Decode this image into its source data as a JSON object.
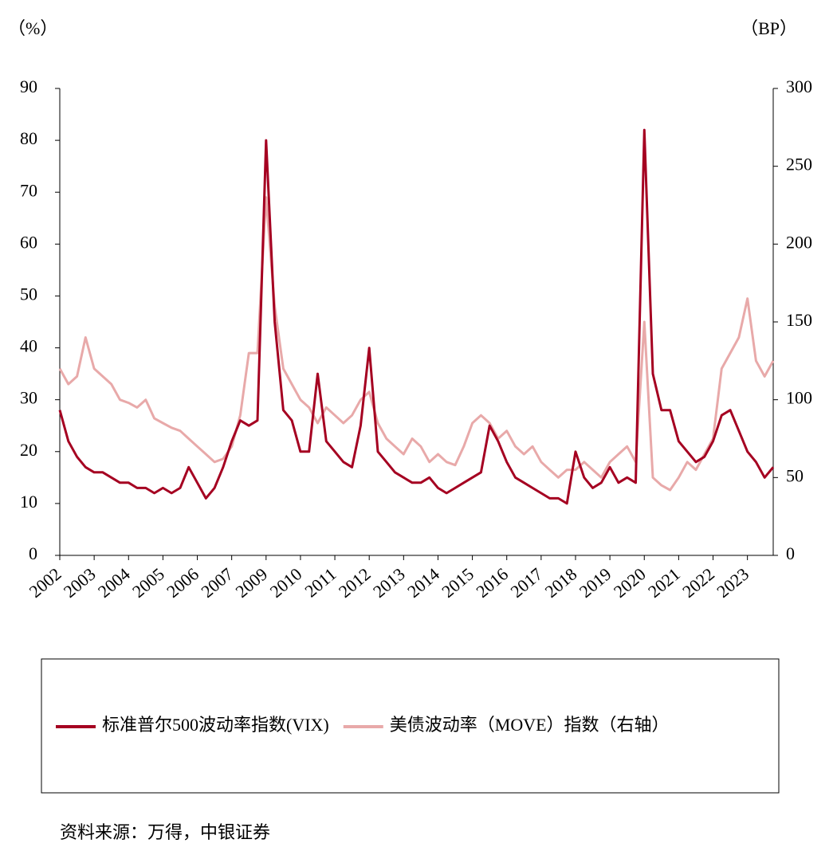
{
  "chart_data": {
    "type": "line",
    "y_unit": "（%）",
    "y2_unit": "（BP）",
    "categories": [
      "2002",
      null,
      null,
      null,
      "2003",
      null,
      null,
      null,
      "2004",
      null,
      null,
      null,
      "2005",
      null,
      null,
      null,
      "2006",
      null,
      null,
      null,
      "2007",
      null,
      null,
      null,
      "2009",
      null,
      null,
      null,
      "2010",
      null,
      null,
      null,
      "2011",
      null,
      null,
      null,
      "2012",
      null,
      null,
      null,
      "2013",
      null,
      null,
      null,
      "2014",
      null,
      null,
      null,
      "2015",
      null,
      null,
      null,
      "2016",
      null,
      null,
      null,
      "2017",
      null,
      null,
      null,
      "2018",
      null,
      null,
      null,
      "2019",
      null,
      null,
      null,
      "2020",
      null,
      null,
      null,
      "2021",
      null,
      null,
      null,
      "2022",
      null,
      null,
      null,
      "2023",
      null,
      null,
      null
    ],
    "series": [
      {
        "name": "标准普尔500波动率指数(VIX)",
        "color": "#a50021",
        "axis": "y",
        "values": [
          28,
          22,
          19,
          17,
          16,
          16,
          15,
          14,
          14,
          13,
          13,
          12,
          13,
          12,
          13,
          17,
          14,
          11,
          13,
          17,
          22,
          26,
          25,
          26,
          80,
          45,
          28,
          26,
          20,
          20,
          35,
          22,
          20,
          18,
          17,
          25,
          40,
          20,
          18,
          16,
          15,
          14,
          14,
          15,
          13,
          12,
          13,
          14,
          15,
          16,
          25,
          22,
          18,
          15,
          14,
          13,
          12,
          11,
          11,
          10,
          20,
          15,
          13,
          14,
          17,
          14,
          15,
          14,
          82,
          35,
          28,
          28,
          22,
          20,
          18,
          19,
          22,
          27,
          28,
          24,
          20,
          18,
          15,
          17
        ]
      },
      {
        "name": "美债波动率（MOVE）指数（右轴）",
        "color": "#e8a9a9",
        "axis": "y2",
        "values": [
          120,
          110,
          115,
          140,
          120,
          115,
          110,
          100,
          98,
          95,
          100,
          88,
          85,
          82,
          80,
          75,
          70,
          65,
          60,
          62,
          70,
          90,
          130,
          130,
          230,
          160,
          120,
          110,
          100,
          95,
          85,
          95,
          90,
          85,
          90,
          100,
          105,
          85,
          75,
          70,
          65,
          75,
          70,
          60,
          65,
          60,
          58,
          70,
          85,
          90,
          85,
          75,
          80,
          70,
          65,
          70,
          60,
          55,
          50,
          55,
          55,
          60,
          55,
          50,
          60,
          65,
          70,
          60,
          150,
          50,
          45,
          42,
          50,
          60,
          55,
          65,
          75,
          120,
          130,
          140,
          165,
          125,
          115,
          125
        ]
      }
    ],
    "ylim": [
      0,
      90
    ],
    "yticks": [
      0,
      10,
      20,
      30,
      40,
      50,
      60,
      70,
      80,
      90
    ],
    "y2lim": [
      0,
      300
    ],
    "y2ticks": [
      0,
      50,
      100,
      150,
      200,
      250,
      300
    ],
    "source": "资料来源：万得，中银证券"
  }
}
